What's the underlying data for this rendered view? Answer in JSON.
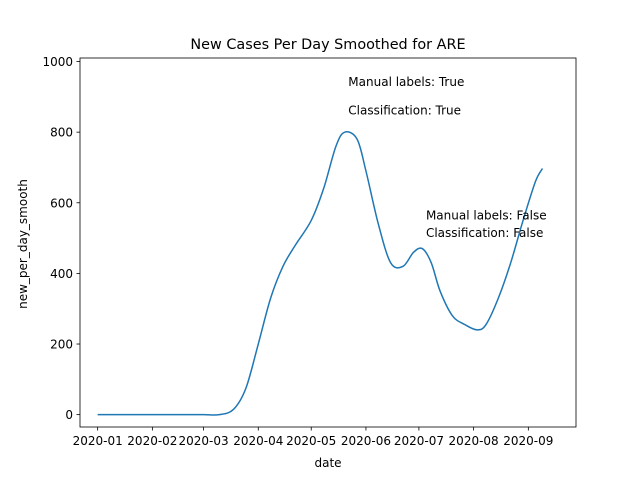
{
  "chart_data": {
    "type": "line",
    "title": "New Cases Per Day Smoothed for ARE",
    "xlabel": "date",
    "ylabel": "new_per_day_smooth",
    "x_axis": "date",
    "xlim": [
      "2019-12-22",
      "2020-09-28"
    ],
    "ylim": [
      -35,
      1010
    ],
    "x_ticks": [
      "2020-01-01",
      "2020-02-01",
      "2020-03-01",
      "2020-04-01",
      "2020-05-01",
      "2020-06-01",
      "2020-07-01",
      "2020-08-01",
      "2020-09-01"
    ],
    "x_tick_labels": [
      "2020-01",
      "2020-02",
      "2020-03",
      "2020-04",
      "2020-05",
      "2020-06",
      "2020-07",
      "2020-08",
      "2020-09"
    ],
    "y_ticks": [
      0,
      200,
      400,
      600,
      800,
      1000
    ],
    "y_tick_labels": [
      "0",
      "200",
      "400",
      "600",
      "800",
      "1000"
    ],
    "grid": false,
    "line_color": "#1f77b4",
    "series": [
      {
        "x": [
          "2020-01-01",
          "2020-01-15",
          "2020-02-01",
          "2020-02-15",
          "2020-03-01",
          "2020-03-10",
          "2020-03-18",
          "2020-03-25",
          "2020-04-01",
          "2020-04-08",
          "2020-04-15",
          "2020-04-22",
          "2020-05-01",
          "2020-05-08",
          "2020-05-15",
          "2020-05-20",
          "2020-05-27",
          "2020-06-01",
          "2020-06-08",
          "2020-06-15",
          "2020-06-22",
          "2020-06-28",
          "2020-07-03",
          "2020-07-08",
          "2020-07-13",
          "2020-07-20",
          "2020-07-27",
          "2020-08-03",
          "2020-08-08",
          "2020-08-15",
          "2020-08-22",
          "2020-08-29",
          "2020-09-05",
          "2020-09-09"
        ],
        "y": [
          0,
          0,
          0,
          0,
          0,
          0,
          15,
          75,
          200,
          330,
          420,
          480,
          550,
          640,
          760,
          800,
          780,
          690,
          540,
          430,
          420,
          460,
          470,
          430,
          350,
          280,
          255,
          240,
          255,
          330,
          430,
          550,
          660,
          697
        ]
      }
    ],
    "annotations": [
      {
        "text": "Manual labels: True",
        "x": "2020-05-22",
        "y": 930
      },
      {
        "text": "Classification: True",
        "x": "2020-05-22",
        "y": 850
      },
      {
        "text": "Manual labels: False",
        "x": "2020-07-05",
        "y": 552
      },
      {
        "text": "Classification: False",
        "x": "2020-07-05",
        "y": 503
      }
    ]
  }
}
